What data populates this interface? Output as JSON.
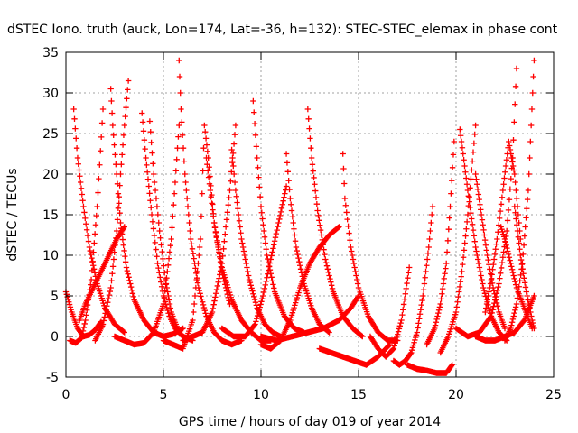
{
  "chart_data": {
    "type": "scatter",
    "title": "dSTEC Iono. truth (auck, Lon=174, Lat=-36, h=132): STEC-STEC_elemax in phase cont",
    "xlabel": "GPS time / hours of day 019 of year 2014",
    "ylabel": "dSTEC  / TECUs",
    "xlim": [
      0,
      25
    ],
    "ylim": [
      -5,
      35
    ],
    "xticks": [
      0,
      5,
      10,
      15,
      20,
      25
    ],
    "yticks": [
      -5,
      0,
      5,
      10,
      15,
      20,
      25,
      30,
      35
    ],
    "grid": true,
    "marker": "+",
    "color": "#ff0000",
    "series": [
      {
        "x": [
          0.0,
          0.3,
          0.6,
          0.9,
          1.2,
          1.5,
          1.8
        ],
        "y": [
          5.5,
          3.0,
          1.0,
          0.0,
          0.2,
          0.8,
          1.8
        ]
      },
      {
        "x": [
          0.4,
          0.6,
          0.9,
          1.2,
          1.6,
          2.0,
          2.5,
          3.0
        ],
        "y": [
          28.0,
          22.0,
          16.0,
          11.0,
          6.5,
          3.5,
          1.5,
          0.5
        ]
      },
      {
        "x": [
          0.2,
          0.5,
          0.8,
          1.0,
          1.3,
          1.6,
          1.9
        ],
        "y": [
          -0.5,
          -0.8,
          -0.2,
          2.0,
          7.0,
          16.0,
          28.0
        ]
      },
      {
        "x": [
          0.7,
          1.0,
          1.4,
          1.8,
          2.2,
          2.6,
          3.0
        ],
        "y": [
          2.0,
          4.0,
          6.0,
          8.0,
          10.0,
          12.0,
          13.5
        ]
      },
      {
        "x": [
          2.3,
          2.4,
          2.6,
          2.8,
          3.1,
          3.5,
          4.0,
          4.5,
          5.0,
          5.5,
          6.0
        ],
        "y": [
          30.5,
          26.0,
          20.0,
          14.0,
          8.5,
          4.5,
          2.0,
          0.5,
          0.0,
          0.3,
          1.0
        ]
      },
      {
        "x": [
          1.5,
          1.9,
          2.3,
          2.6,
          2.8,
          3.0,
          3.2
        ],
        "y": [
          -0.5,
          1.5,
          6.0,
          13.0,
          20.0,
          26.0,
          31.5
        ]
      },
      {
        "x": [
          2.5,
          3.0,
          3.5,
          4.0,
          4.5,
          5.0,
          5.4,
          5.8
        ],
        "y": [
          0.0,
          -0.5,
          -1.0,
          -0.8,
          0.5,
          4.0,
          12.0,
          26.0
        ]
      },
      {
        "x": [
          3.9,
          4.1,
          4.4,
          4.7,
          5.0,
          5.3,
          5.6,
          6.0,
          6.5
        ],
        "y": [
          27.5,
          22.0,
          15.0,
          9.0,
          5.0,
          2.5,
          1.0,
          0.0,
          -0.5
        ]
      },
      {
        "x": [
          4.3,
          4.5,
          4.8,
          5.1,
          5.4,
          5.8,
          6.2
        ],
        "y": [
          26.5,
          20.0,
          13.0,
          7.0,
          3.0,
          0.5,
          -0.5
        ]
      },
      {
        "x": [
          5.8,
          5.9,
          6.1,
          6.4,
          6.8,
          7.2,
          7.6,
          8.0,
          8.5,
          9.0
        ],
        "y": [
          34.0,
          28.0,
          20.0,
          12.0,
          6.0,
          2.5,
          0.5,
          -0.5,
          -1.0,
          -0.5
        ]
      },
      {
        "x": [
          5.0,
          5.5,
          6.0,
          6.5,
          6.9,
          7.1,
          7.3,
          7.6,
          8.0,
          8.4
        ],
        "y": [
          -0.5,
          -1.0,
          -1.5,
          2.0,
          12.0,
          26.0,
          22.0,
          14.0,
          8.0,
          4.0
        ]
      },
      {
        "x": [
          6.0,
          6.5,
          7.0,
          7.5,
          8.0,
          8.4,
          8.7
        ],
        "y": [
          -0.5,
          0.0,
          0.5,
          3.0,
          9.0,
          18.0,
          26.0
        ]
      },
      {
        "x": [
          7.2,
          7.6,
          8.0,
          8.5,
          9.0,
          9.5,
          10.0,
          10.5
        ],
        "y": [
          22.0,
          14.0,
          8.5,
          4.5,
          2.0,
          0.5,
          -0.5,
          -0.5
        ]
      },
      {
        "x": [
          8.5,
          8.7,
          9.0,
          9.4,
          9.8,
          10.2,
          10.6,
          11.0
        ],
        "y": [
          23.0,
          18.0,
          12.0,
          7.0,
          3.5,
          1.5,
          0.5,
          0.0
        ]
      },
      {
        "x": [
          9.6,
          9.8,
          10.0,
          10.3,
          10.7,
          11.2,
          11.7,
          12.2
        ],
        "y": [
          29.0,
          22.0,
          16.0,
          10.0,
          5.5,
          2.5,
          1.0,
          0.5
        ]
      },
      {
        "x": [
          8.0,
          8.6,
          9.2,
          9.7,
          10.1,
          10.5,
          10.9,
          11.3
        ],
        "y": [
          1.0,
          0.0,
          0.0,
          1.5,
          5.0,
          9.5,
          14.0,
          18.5
        ]
      },
      {
        "x": [
          10.0,
          10.5,
          11.0,
          11.5,
          12.0,
          12.5,
          13.0,
          13.5,
          14.0
        ],
        "y": [
          -1.0,
          -1.5,
          -0.5,
          2.0,
          6.0,
          9.0,
          11.0,
          12.5,
          13.5
        ]
      },
      {
        "x": [
          11.3,
          11.5,
          11.8,
          12.2,
          12.6,
          13.0,
          13.5
        ],
        "y": [
          22.5,
          17.0,
          11.0,
          6.5,
          3.5,
          1.5,
          0.5
        ]
      },
      {
        "x": [
          12.4,
          12.6,
          12.9,
          13.3,
          13.7,
          14.2,
          14.7,
          15.2
        ],
        "y": [
          28.0,
          22.0,
          15.5,
          9.5,
          5.5,
          2.5,
          1.0,
          0.0
        ]
      },
      {
        "x": [
          10.0,
          10.8,
          11.6,
          12.4,
          13.2,
          14.0,
          14.6,
          15.0
        ],
        "y": [
          0.0,
          -0.5,
          0.0,
          0.5,
          1.0,
          2.0,
          3.5,
          5.0
        ]
      },
      {
        "x": [
          14.2,
          14.3,
          14.6,
          15.0,
          15.5,
          16.0,
          16.5,
          17.0
        ],
        "y": [
          22.5,
          17.0,
          11.0,
          6.0,
          2.5,
          0.5,
          -0.5,
          -0.5
        ]
      },
      {
        "x": [
          13.0,
          13.6,
          14.2,
          14.8,
          15.4,
          16.0,
          16.6
        ],
        "y": [
          -1.5,
          -2.0,
          -2.5,
          -3.0,
          -3.5,
          -2.5,
          -1.0
        ]
      },
      {
        "x": [
          15.6,
          16.0,
          16.4,
          16.8,
          17.2,
          17.6
        ],
        "y": [
          0.0,
          -1.5,
          -2.5,
          -1.5,
          2.0,
          8.5
        ]
      },
      {
        "x": [
          16.8,
          17.1,
          17.4,
          17.7,
          18.0,
          18.3,
          18.6,
          18.8
        ],
        "y": [
          -3.0,
          -3.5,
          -3.0,
          -2.0,
          0.5,
          5.0,
          11.0,
          16.0
        ]
      },
      {
        "x": [
          17.5,
          18.0,
          18.5,
          19.0,
          19.5,
          19.8
        ],
        "y": [
          -3.5,
          -4.0,
          -4.2,
          -4.5,
          -4.5,
          -3.5
        ]
      },
      {
        "x": [
          18.5,
          18.9,
          19.2,
          19.5,
          19.7,
          19.9
        ],
        "y": [
          -1.0,
          1.0,
          4.0,
          9.0,
          16.0,
          24.0
        ]
      },
      {
        "x": [
          19.2,
          19.6,
          20.0,
          20.3,
          20.6,
          21.0
        ],
        "y": [
          -2.0,
          0.0,
          3.0,
          8.0,
          15.0,
          26.0
        ]
      },
      {
        "x": [
          20.2,
          20.6,
          21.0,
          21.4,
          21.8,
          22.2,
          22.6
        ],
        "y": [
          25.5,
          18.0,
          11.0,
          6.0,
          2.5,
          0.5,
          -0.5
        ]
      },
      {
        "x": [
          21.0,
          21.3,
          21.6,
          21.9,
          22.2,
          22.5
        ],
        "y": [
          20.0,
          15.0,
          10.0,
          6.0,
          3.0,
          1.0
        ]
      },
      {
        "x": [
          20.0,
          20.6,
          21.2,
          21.8,
          22.2,
          22.6,
          22.9,
          23.1
        ],
        "y": [
          1.0,
          0.0,
          0.5,
          2.5,
          6.5,
          13.0,
          22.0,
          33.0
        ]
      },
      {
        "x": [
          21.5,
          21.8,
          22.1,
          22.4,
          22.7,
          23.0,
          23.3
        ],
        "y": [
          3.0,
          7.0,
          12.0,
          18.0,
          24.0,
          20.0,
          12.0
        ]
      },
      {
        "x": [
          22.3,
          22.5,
          22.8,
          23.1,
          23.5,
          23.9
        ],
        "y": [
          13.5,
          12.0,
          9.0,
          6.0,
          3.5,
          1.0
        ]
      },
      {
        "x": [
          22.5,
          22.8,
          23.1,
          23.4,
          23.7,
          24.0
        ],
        "y": [
          -0.5,
          1.0,
          4.0,
          9.0,
          18.0,
          34.0
        ]
      },
      {
        "x": [
          23.0,
          23.3,
          23.6,
          23.9,
          24.0
        ],
        "y": [
          16.0,
          10.0,
          5.5,
          2.0,
          1.0
        ]
      },
      {
        "x": [
          21.0,
          21.5,
          22.0,
          22.5,
          23.0,
          23.5,
          24.0
        ],
        "y": [
          0.0,
          -0.5,
          -0.5,
          0.0,
          0.5,
          2.0,
          5.0
        ]
      }
    ]
  }
}
